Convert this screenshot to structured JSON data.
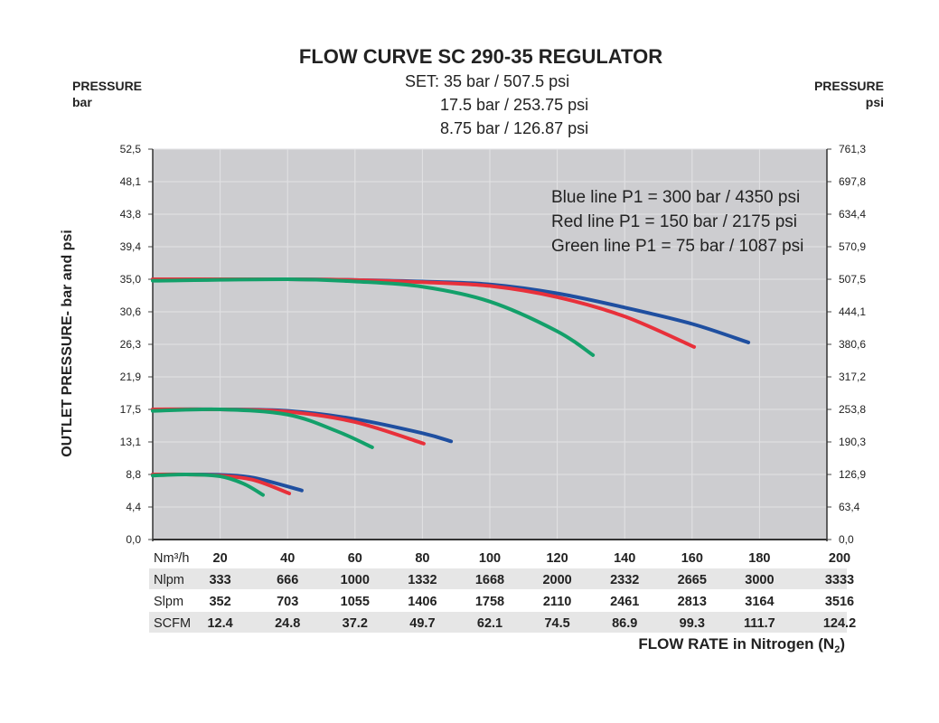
{
  "chart_data": {
    "type": "line",
    "title": "FLOW CURVE SC 290-35 REGULATOR",
    "subtitle": [
      "SET: 35 bar / 507.5 psi",
      "17.5 bar / 253.75 psi",
      "8.75 bar / 126.87 psi"
    ],
    "left_axis_header": [
      "PRESSURE",
      "bar"
    ],
    "right_axis_header": [
      "PRESSURE",
      "psi"
    ],
    "ylabel": "OUTLET PRESSURE- bar and psi",
    "xlabel": "FLOW RATE in Nitrogen (N",
    "xlabel_sub": "2",
    "xlabel_end": ")",
    "xlim": [
      0,
      200
    ],
    "ylim": [
      0,
      52.5
    ],
    "grid": true,
    "plot_background": "#cdcdd0",
    "y_ticks_left": [
      "0,0",
      "4,4",
      "8,8",
      "13,1",
      "17,5",
      "21,9",
      "26,3",
      "30,6",
      "35,0",
      "39,4",
      "43,8",
      "48,1",
      "52,5"
    ],
    "y_ticks_right": [
      "0,0",
      "63,4",
      "126,9",
      "190,3",
      "253,8",
      "317,2",
      "380,6",
      "444,1",
      "507,5",
      "570,9",
      "634,4",
      "697,8",
      "761,3"
    ],
    "legend": [
      "Blue line P1 = 300 bar / 4350 psi",
      "Red line P1 = 150 bar / 2175 psi",
      "Green line P1 = 75 bar / 1087 psi"
    ],
    "legend_placement": "top-right",
    "x_table": [
      {
        "unit": "Nm³/h",
        "values": [
          "20",
          "40",
          "60",
          "80",
          "100",
          "120",
          "140",
          "160",
          "180",
          "200"
        ]
      },
      {
        "unit": "Nlpm",
        "values": [
          "333",
          "666",
          "1000",
          "1332",
          "1668",
          "2000",
          "2332",
          "2665",
          "3000",
          "3333"
        ]
      },
      {
        "unit": "Slpm",
        "values": [
          "352",
          "703",
          "1055",
          "1406",
          "1758",
          "2110",
          "2461",
          "2813",
          "3164",
          "3516"
        ]
      },
      {
        "unit": "SCFM",
        "values": [
          "12.4",
          "24.8",
          "37.2",
          "49.7",
          "62.1",
          "74.5",
          "86.9",
          "99.3",
          "111.7",
          "124.2"
        ]
      }
    ],
    "series": [
      {
        "color": "#1f4fa0",
        "set": 35,
        "x": [
          0,
          40,
          60,
          80,
          100,
          120,
          140,
          160,
          176.7
        ],
        "y": [
          35,
          35,
          34.9,
          34.7,
          34.3,
          33.1,
          31.2,
          29.0,
          26.5
        ]
      },
      {
        "color": "#e8303a",
        "set": 35,
        "x": [
          0,
          40,
          60,
          80,
          100,
          120,
          140,
          160.6
        ],
        "y": [
          35,
          35,
          34.9,
          34.6,
          34.1,
          32.6,
          30.0,
          25.9
        ]
      },
      {
        "color": "#13a06a",
        "set": 35,
        "x": [
          0,
          40,
          60,
          80,
          100,
          120,
          130.6
        ],
        "y": [
          34.8,
          35,
          34.7,
          34.0,
          32.0,
          28.0,
          24.8
        ]
      },
      {
        "color": "#1f4fa0",
        "set": 17.5,
        "x": [
          0,
          20,
          40,
          60,
          80,
          88.5
        ],
        "y": [
          17.5,
          17.5,
          17.3,
          16.2,
          14.3,
          13.2
        ]
      },
      {
        "color": "#e8303a",
        "set": 17.5,
        "x": [
          0,
          20,
          40,
          60,
          80.4
        ],
        "y": [
          17.5,
          17.5,
          17.2,
          15.8,
          12.9
        ]
      },
      {
        "color": "#13a06a",
        "set": 17.5,
        "x": [
          0,
          20,
          40,
          55,
          65.1
        ],
        "y": [
          17.3,
          17.5,
          16.8,
          14.5,
          12.4
        ]
      },
      {
        "color": "#1f4fa0",
        "set": 8.75,
        "x": [
          0,
          10,
          20,
          30,
          44.2
        ],
        "y": [
          8.75,
          8.75,
          8.7,
          8.3,
          6.6
        ]
      },
      {
        "color": "#e8303a",
        "set": 8.75,
        "x": [
          0,
          10,
          20,
          30,
          40.5
        ],
        "y": [
          8.75,
          8.75,
          8.6,
          8.0,
          6.2
        ]
      },
      {
        "color": "#13a06a",
        "set": 8.75,
        "x": [
          0,
          10,
          20,
          27,
          32.7
        ],
        "y": [
          8.6,
          8.75,
          8.5,
          7.5,
          6.0
        ]
      }
    ]
  }
}
